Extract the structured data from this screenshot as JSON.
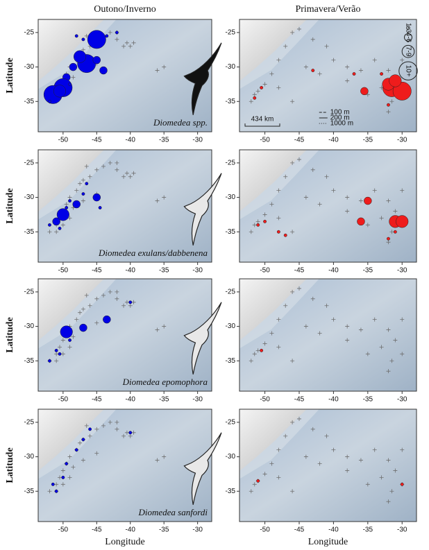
{
  "chart_data": [
    {
      "type": "scatter",
      "title": "Outono/Inverno",
      "ylabel": "Latitude",
      "annotation": "Diomedea spp.",
      "xlim": [
        -53.7,
        -27.9
      ],
      "ylim": [
        -39.4,
        -23.1
      ],
      "xticks": [
        -50,
        -45,
        -40,
        -35,
        -30
      ],
      "yticks": [
        -25,
        -30,
        -35
      ],
      "series": [
        {
          "marker": "cross",
          "color": "#6e6e6e",
          "x": [
            -51,
            -50.5,
            -50,
            -49.5,
            -49,
            -48,
            -47.5,
            -47,
            -46,
            -45,
            -44,
            -43,
            -42,
            -40.5,
            -40,
            -39.5,
            -41,
            -48.5,
            -47,
            -45,
            -36,
            -35,
            -52,
            -51,
            -50,
            -49,
            -46.5,
            -42
          ],
          "y": [
            -34,
            -33,
            -32,
            -31,
            -30,
            -29,
            -28,
            -27.5,
            -27,
            -26,
            -25.5,
            -25,
            -25,
            -26.5,
            -27,
            -26.5,
            -27,
            -31.5,
            -30.5,
            -29.5,
            -30.5,
            -30,
            -35,
            -35,
            -34,
            -33,
            -25.5,
            -26
          ]
        },
        {
          "marker": "circle",
          "color": "#0000e6",
          "x": [
            -45,
            -46.5,
            -47.5,
            -48.5,
            -49.5,
            -50,
            -51.5,
            -50.5,
            -45,
            -44,
            -49,
            -48,
            -42,
            -43.5,
            -47,
            -52
          ],
          "y": [
            -26,
            -29.5,
            -28.5,
            -30,
            -31.5,
            -33,
            -34,
            -33.5,
            -29,
            -30.5,
            -32.5,
            -25.5,
            -25,
            -25.5,
            -26,
            -35
          ],
          "sizes": [
            12,
            12,
            8,
            5,
            5,
            12,
            12,
            8,
            5,
            5,
            2,
            2,
            2,
            2,
            2,
            2
          ]
        }
      ]
    },
    {
      "type": "scatter",
      "title": "Primavera/Verão",
      "xlim": [
        -53.7,
        -27.9
      ],
      "ylim": [
        -39.4,
        -23.1
      ],
      "xticks": [
        -50,
        -45,
        -40,
        -35,
        -30
      ],
      "yticks": [
        -25,
        -30,
        -35
      ],
      "legend": {
        "sizes": [
          2,
          5,
          8,
          12
        ],
        "labels": [
          "1-3",
          "4-6",
          "7-9",
          "10+"
        ],
        "depths": [
          "100 m",
          "200 m",
          "1000 m"
        ],
        "scale": "434 km"
      },
      "series": [
        {
          "marker": "cross",
          "color": "#6e6e6e",
          "x": [
            -52,
            -51.5,
            -51,
            -50,
            -49,
            -48,
            -47,
            -46,
            -45,
            -43,
            -41,
            -40,
            -38,
            -36,
            -34,
            -32,
            -31,
            -33,
            -30,
            -31.5,
            -32,
            -35,
            -38,
            -44,
            -42,
            -48,
            -46,
            -30
          ],
          "y": [
            -35,
            -34,
            -33.5,
            -32.5,
            -31,
            -29,
            -27,
            -25,
            -24.5,
            -26,
            -27,
            -29,
            -30,
            -30.5,
            -29,
            -30.5,
            -32,
            -33,
            -34,
            -35,
            -36.5,
            -34,
            -32,
            -30,
            -31,
            -33,
            -35,
            -29
          ]
        },
        {
          "marker": "circle",
          "color": "#ee1c1c",
          "x": [
            -35.5,
            -31.5,
            -30,
            -32,
            -31,
            -33,
            -32,
            -43,
            -50.5,
            -51.5,
            -37
          ],
          "y": [
            -33.5,
            -33,
            -33.5,
            -32.5,
            -32,
            -31,
            -35.5,
            -30.5,
            -33,
            -34.5,
            -31
          ],
          "sizes": [
            5,
            12,
            12,
            8,
            8,
            2,
            2,
            2,
            2,
            2,
            2
          ]
        }
      ]
    },
    {
      "type": "scatter",
      "ylabel": "Latitude",
      "annotation": "Diomedea exulans/dabbenena",
      "xlim": [
        -53.7,
        -27.9
      ],
      "ylim": [
        -39.4,
        -23.1
      ],
      "xticks": [
        -50,
        -45,
        -40,
        -35,
        -30
      ],
      "yticks": [
        -25,
        -30,
        -35
      ],
      "series": [
        {
          "marker": "cross",
          "color": "#6e6e6e",
          "x": [
            -51,
            -50.5,
            -50,
            -49.5,
            -49,
            -48,
            -47.5,
            -47,
            -46,
            -45,
            -44,
            -43,
            -42,
            -40.5,
            -40,
            -39.5,
            -41,
            -48.5,
            -47,
            -45,
            -36,
            -35,
            -52,
            -51,
            -50,
            -49,
            -46.5,
            -42
          ],
          "y": [
            -34,
            -33,
            -32,
            -31,
            -30,
            -29,
            -28,
            -27.5,
            -27,
            -26,
            -25.5,
            -25,
            -25,
            -26.5,
            -27,
            -26.5,
            -27,
            -31.5,
            -30.5,
            -29.5,
            -30.5,
            -30,
            -35,
            -35,
            -34,
            -33,
            -25.5,
            -26
          ]
        },
        {
          "marker": "circle",
          "color": "#0000e6",
          "x": [
            -45,
            -48,
            -50,
            -51,
            -49,
            -47,
            -46.5,
            -52,
            -50.5,
            -49.5,
            -44.5
          ],
          "y": [
            -30,
            -31,
            -32.5,
            -33.5,
            -30.5,
            -29.5,
            -28,
            -34,
            -34.5,
            -31.5,
            -31.5
          ],
          "sizes": [
            5,
            5,
            8,
            5,
            2,
            2,
            2,
            2,
            2,
            2,
            2
          ]
        }
      ]
    },
    {
      "type": "scatter",
      "xlim": [
        -53.7,
        -27.9
      ],
      "ylim": [
        -39.4,
        -23.1
      ],
      "xticks": [
        -50,
        -45,
        -40,
        -35,
        -30
      ],
      "yticks": [
        -25,
        -30,
        -35
      ],
      "series": [
        {
          "marker": "cross",
          "color": "#6e6e6e",
          "x": [
            -52,
            -51.5,
            -51,
            -50,
            -49,
            -48,
            -47,
            -46,
            -45,
            -43,
            -41,
            -40,
            -38,
            -36,
            -34,
            -32,
            -31,
            -33,
            -30,
            -31.5,
            -32,
            -35,
            -38,
            -44,
            -42,
            -48,
            -46,
            -30
          ],
          "y": [
            -35,
            -34,
            -33.5,
            -32.5,
            -31,
            -29,
            -27,
            -25,
            -24.5,
            -26,
            -27,
            -29,
            -30,
            -30.5,
            -29,
            -30.5,
            -32,
            -33,
            -34,
            -35,
            -36.5,
            -34,
            -32,
            -30,
            -31,
            -33,
            -35,
            -29
          ]
        },
        {
          "marker": "circle",
          "color": "#ee1c1c",
          "x": [
            -35,
            -36,
            -31,
            -30,
            -51,
            -50,
            -48,
            -47,
            -32,
            -31
          ],
          "y": [
            -30.5,
            -33.5,
            -33.5,
            -33.5,
            -34,
            -33.5,
            -35,
            -35.5,
            -36,
            -35
          ],
          "sizes": [
            5,
            5,
            8,
            8,
            2,
            2,
            2,
            2,
            2,
            2
          ]
        }
      ]
    },
    {
      "type": "scatter",
      "ylabel": "Latitude",
      "annotation": "Diomedea epomophora",
      "xlim": [
        -53.7,
        -27.9
      ],
      "ylim": [
        -39.4,
        -23.1
      ],
      "xticks": [
        -50,
        -45,
        -40,
        -35,
        -30
      ],
      "yticks": [
        -25,
        -30,
        -35
      ],
      "series": [
        {
          "marker": "cross",
          "color": "#6e6e6e",
          "x": [
            -51,
            -50.5,
            -50,
            -49.5,
            -49,
            -48,
            -47.5,
            -47,
            -46,
            -45,
            -44,
            -43,
            -42,
            -40.5,
            -40,
            -39.5,
            -41,
            -48.5,
            -47,
            -45,
            -36,
            -35,
            -52,
            -51,
            -50,
            -49,
            -46.5,
            -42
          ],
          "y": [
            -34,
            -33,
            -32,
            -31,
            -30,
            -29,
            -28,
            -27.5,
            -27,
            -26,
            -25.5,
            -25,
            -25,
            -26.5,
            -27,
            -26.5,
            -27,
            -31.5,
            -30.5,
            -29.5,
            -30.5,
            -30,
            -35,
            -35,
            -34,
            -33,
            -25.5,
            -26
          ]
        },
        {
          "marker": "circle",
          "color": "#0000e6",
          "x": [
            -49.5,
            -47,
            -43.5,
            -51,
            -50.5,
            -49,
            -52,
            -40
          ],
          "y": [
            -30.8,
            -30.2,
            -29,
            -33.5,
            -34,
            -32,
            -35,
            -26.5
          ],
          "sizes": [
            8,
            5,
            5,
            2,
            2,
            2,
            2,
            2
          ]
        }
      ]
    },
    {
      "type": "scatter",
      "xlim": [
        -53.7,
        -27.9
      ],
      "ylim": [
        -39.4,
        -23.1
      ],
      "xticks": [
        -50,
        -45,
        -40,
        -35,
        -30
      ],
      "yticks": [
        -25,
        -30,
        -35
      ],
      "series": [
        {
          "marker": "cross",
          "color": "#6e6e6e",
          "x": [
            -52,
            -51.5,
            -51,
            -50,
            -49,
            -48,
            -47,
            -46,
            -45,
            -43,
            -41,
            -40,
            -38,
            -36,
            -34,
            -32,
            -31,
            -33,
            -30,
            -31.5,
            -32,
            -35,
            -38,
            -44,
            -42,
            -48,
            -46,
            -30
          ],
          "y": [
            -35,
            -34,
            -33.5,
            -32.5,
            -31,
            -29,
            -27,
            -25,
            -24.5,
            -26,
            -27,
            -29,
            -30,
            -30.5,
            -29,
            -30.5,
            -32,
            -33,
            -34,
            -35,
            -36.5,
            -34,
            -32,
            -30,
            -31,
            -33,
            -35,
            -29
          ]
        },
        {
          "marker": "circle",
          "color": "#ee1c1c",
          "x": [
            -50.5
          ],
          "y": [
            -33.5
          ],
          "sizes": [
            2
          ]
        }
      ]
    },
    {
      "type": "scatter",
      "ylabel": "Latitude",
      "xlabel": "Longitude",
      "annotation": "Diomedea sanfordi",
      "xlim": [
        -53.7,
        -27.9
      ],
      "ylim": [
        -39.4,
        -23.1
      ],
      "xticks": [
        -50,
        -45,
        -40,
        -35,
        -30
      ],
      "yticks": [
        -25,
        -30,
        -35
      ],
      "series": [
        {
          "marker": "cross",
          "color": "#6e6e6e",
          "x": [
            -51,
            -50.5,
            -50,
            -49.5,
            -49,
            -48,
            -47.5,
            -47,
            -46,
            -45,
            -44,
            -43,
            -42,
            -40.5,
            -40,
            -39.5,
            -41,
            -48.5,
            -47,
            -45,
            -36,
            -35,
            -52,
            -51,
            -50,
            -49,
            -46.5,
            -42
          ],
          "y": [
            -34,
            -33,
            -32,
            -31,
            -30,
            -29,
            -28,
            -27.5,
            -27,
            -26,
            -25.5,
            -25,
            -25,
            -26.5,
            -27,
            -26.5,
            -27,
            -31.5,
            -30.5,
            -29.5,
            -30.5,
            -30,
            -35,
            -35,
            -34,
            -33,
            -25.5,
            -26
          ]
        },
        {
          "marker": "circle",
          "color": "#0000e6",
          "x": [
            -50,
            -51.5,
            -49.5,
            -48,
            -47,
            -46,
            -40,
            -51
          ],
          "y": [
            -33,
            -34,
            -31,
            -29,
            -27.5,
            -26,
            -26.5,
            -35
          ],
          "sizes": [
            2,
            2,
            2,
            2,
            2,
            2,
            2,
            2
          ]
        }
      ]
    },
    {
      "type": "scatter",
      "xlabel": "Longitude",
      "xlim": [
        -53.7,
        -27.9
      ],
      "ylim": [
        -39.4,
        -23.1
      ],
      "xticks": [
        -50,
        -45,
        -40,
        -35,
        -30
      ],
      "yticks": [
        -25,
        -30,
        -35
      ],
      "series": [
        {
          "marker": "cross",
          "color": "#6e6e6e",
          "x": [
            -52,
            -51.5,
            -51,
            -50,
            -49,
            -48,
            -47,
            -46,
            -45,
            -43,
            -41,
            -40,
            -38,
            -36,
            -34,
            -32,
            -31,
            -33,
            -30,
            -31.5,
            -32,
            -35,
            -38,
            -44,
            -42,
            -48,
            -46,
            -30
          ],
          "y": [
            -35,
            -34,
            -33.5,
            -32.5,
            -31,
            -29,
            -27,
            -25,
            -24.5,
            -26,
            -27,
            -29,
            -30,
            -30.5,
            -29,
            -30.5,
            -32,
            -33,
            -34,
            -35,
            -36.5,
            -34,
            -32,
            -30,
            -31,
            -33,
            -35,
            -29
          ]
        },
        {
          "marker": "circle",
          "color": "#ee1c1c",
          "x": [
            -51,
            -30
          ],
          "y": [
            -33.5,
            -34
          ],
          "sizes": [
            2,
            2
          ]
        }
      ]
    }
  ]
}
